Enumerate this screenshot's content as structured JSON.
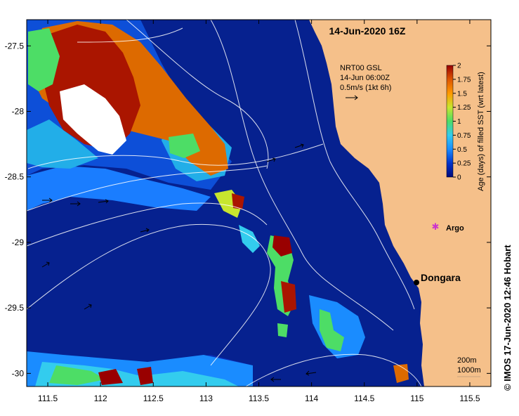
{
  "map": {
    "title": "14-Jun-2020 16Z",
    "credit": "© IMOS 17-Jun-2020 12:46 Hobart",
    "legend": {
      "line1": "NRT00 GSL",
      "line2": "14-Jun 06:00Z",
      "line3": "0.5m/s (1kt 6h)"
    },
    "colorbar": {
      "label": "Age (days) of filled SST (wrt latest)",
      "ticks": [
        "2",
        "1.75",
        "1.5",
        "1.25",
        "1",
        "0.75",
        "0.5",
        "0.25",
        "0"
      ],
      "colors": [
        "#000a7a",
        "#0033cc",
        "#1a8cff",
        "#33ccee",
        "#4ddd66",
        "#c8e62e",
        "#ff9900",
        "#dd5500",
        "#990000"
      ]
    },
    "depth_contours": {
      "line1": "200m",
      "line2": "1000m"
    },
    "places": [
      {
        "name": "Dongara",
        "lon": 114.93,
        "lat": -29.25
      },
      {
        "name": "Argo",
        "lon": 115.12,
        "lat": -28.78
      }
    ],
    "x_ticks": [
      "111.5",
      "112",
      "112.5",
      "113",
      "113.5",
      "114",
      "114.5",
      "115",
      "115.5"
    ],
    "y_ticks": [
      "-27.5",
      "-28",
      "-28.5",
      "-29",
      "-29.5",
      "-30"
    ],
    "land_color": "#f5c08a",
    "ocean_color": "#06218f"
  }
}
